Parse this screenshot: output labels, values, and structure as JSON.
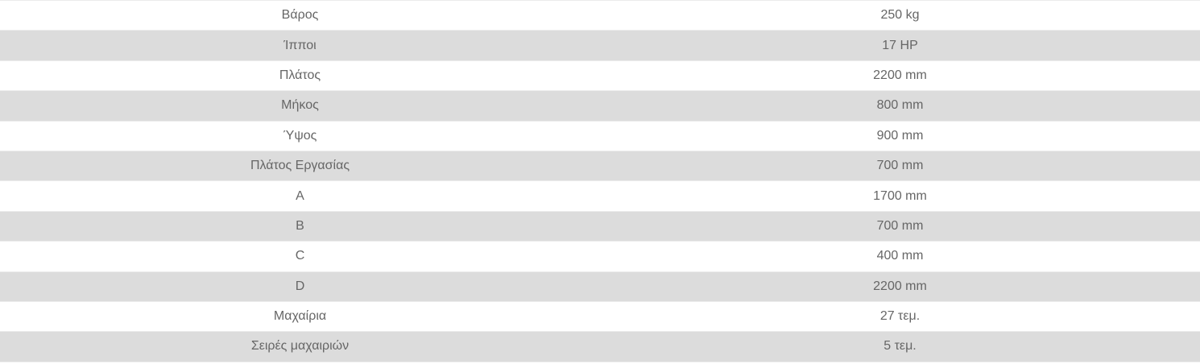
{
  "colors": {
    "row_alt": "#dcdcdc",
    "row": "#ffffff",
    "text": "#666666",
    "border": "#ececec"
  },
  "specs": [
    {
      "label": "Βάρος",
      "value": "250 kg"
    },
    {
      "label": "Ίπποι",
      "value": "17 HP"
    },
    {
      "label": "Πλάτος",
      "value": "2200 mm"
    },
    {
      "label": "Μήκος",
      "value": "800 mm"
    },
    {
      "label": "Ύψος",
      "value": "900 mm"
    },
    {
      "label": "Πλάτος Εργασίας",
      "value": "700 mm"
    },
    {
      "label": "A",
      "value": "1700 mm"
    },
    {
      "label": "B",
      "value": "700 mm"
    },
    {
      "label": "C",
      "value": "400 mm"
    },
    {
      "label": "D",
      "value": "2200 mm"
    },
    {
      "label": "Μαχαίρια",
      "value": "27 τεμ."
    },
    {
      "label": "Σειρές μαχαιριών",
      "value": "5 τεμ."
    }
  ]
}
